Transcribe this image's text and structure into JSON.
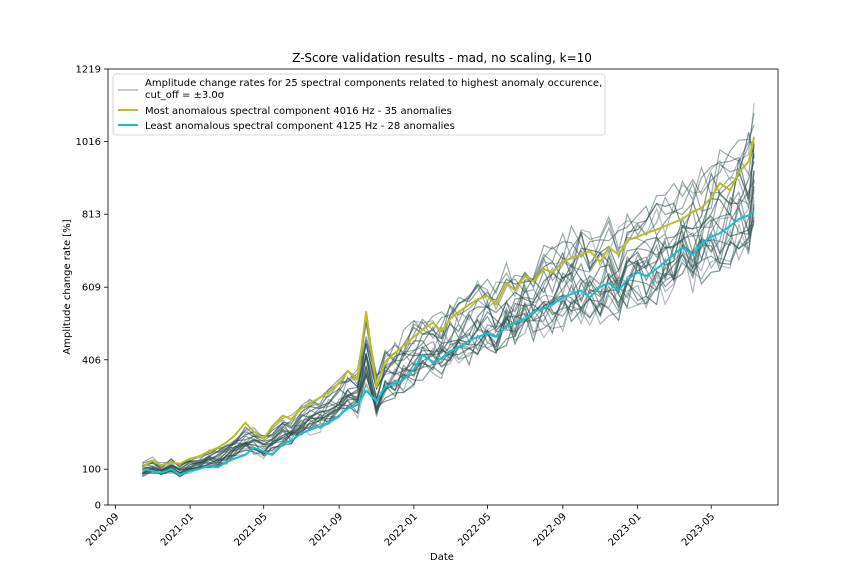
{
  "chart_data": {
    "type": "line",
    "title": "Z-Score validation results - mad, no scaling, k=10",
    "xlabel": "Date",
    "ylabel": "Amplitude change rate [%]",
    "ylim": [
      0,
      1219
    ],
    "y_ticks": [
      0,
      100,
      406,
      609,
      813,
      1016,
      1219
    ],
    "xlim": [
      "2020-08-20",
      "2023-08-18"
    ],
    "x_ticks": [
      "2020-09",
      "2021-01",
      "2021-05",
      "2021-09",
      "2022-01",
      "2022-05",
      "2022-09",
      "2023-01",
      "2023-05"
    ],
    "grid": false,
    "legend_position": "upper-left",
    "colors": {
      "background_series": "#2f4f4f",
      "most_anomalous": "#bcbd22",
      "least_anomalous": "#17becf",
      "legend_background_swatch": "#b0b8b8"
    },
    "legend": {
      "background_label_line1": "Amplitude change rates for 25 spectral components related to highest anomaly occurence,",
      "background_label_line2": "cut_off = ±3.0σ",
      "most_label": "Most anomalous spectral component 4016 Hz - 35 anomalies",
      "least_label": "Least anomalous spectral component 4125 Hz - 28 anomalies"
    },
    "series": [
      {
        "name": "Most anomalous spectral component 4016 Hz - 35 anomalies",
        "x": [
          "2020-10-15",
          "2020-11-01",
          "2020-11-15",
          "2020-12-01",
          "2020-12-15",
          "2021-01-01",
          "2021-01-15",
          "2021-02-01",
          "2021-02-15",
          "2021-03-01",
          "2021-03-15",
          "2021-04-01",
          "2021-04-15",
          "2021-05-01",
          "2021-05-15",
          "2021-06-01",
          "2021-06-15",
          "2021-07-01",
          "2021-07-15",
          "2021-08-01",
          "2021-08-15",
          "2021-09-01",
          "2021-09-15",
          "2021-10-01",
          "2021-10-15",
          "2021-11-01",
          "2021-11-15",
          "2021-12-01",
          "2021-12-15",
          "2022-01-01",
          "2022-01-15",
          "2022-02-01",
          "2022-02-15",
          "2022-03-01",
          "2022-03-15",
          "2022-04-01",
          "2022-04-15",
          "2022-05-01",
          "2022-05-15",
          "2022-06-01",
          "2022-06-15",
          "2022-07-01",
          "2022-07-15",
          "2022-08-01",
          "2022-08-15",
          "2022-09-01",
          "2022-09-15",
          "2022-10-01",
          "2022-10-15",
          "2022-11-01",
          "2022-11-15",
          "2022-12-01",
          "2022-12-15",
          "2023-01-01",
          "2023-01-15",
          "2023-02-01",
          "2023-02-15",
          "2023-03-01",
          "2023-03-15",
          "2023-04-01",
          "2023-04-15",
          "2023-05-01",
          "2023-05-15",
          "2023-06-01",
          "2023-06-15",
          "2023-07-01",
          "2023-07-10"
        ],
        "values": [
          105,
          125,
          110,
          120,
          115,
          130,
          135,
          150,
          160,
          175,
          195,
          230,
          205,
          185,
          220,
          250,
          240,
          270,
          285,
          300,
          315,
          340,
          375,
          350,
          540,
          330,
          400,
          425,
          445,
          470,
          490,
          510,
          485,
          520,
          540,
          560,
          575,
          585,
          560,
          620,
          600,
          640,
          625,
          660,
          650,
          680,
          690,
          700,
          710,
          680,
          720,
          700,
          740,
          750,
          760,
          770,
          780,
          790,
          800,
          820,
          830,
          860,
          900,
          880,
          930,
          960,
          1030
        ]
      },
      {
        "name": "Least anomalous spectral component 4125 Hz - 28 anomalies",
        "x": [
          "2020-10-15",
          "2020-11-01",
          "2020-11-15",
          "2020-12-01",
          "2020-12-15",
          "2021-01-01",
          "2021-01-15",
          "2021-02-01",
          "2021-02-15",
          "2021-03-01",
          "2021-03-15",
          "2021-04-01",
          "2021-04-15",
          "2021-05-01",
          "2021-05-15",
          "2021-06-01",
          "2021-06-15",
          "2021-07-01",
          "2021-07-15",
          "2021-08-01",
          "2021-08-15",
          "2021-09-01",
          "2021-09-15",
          "2021-10-01",
          "2021-10-15",
          "2021-11-01",
          "2021-11-15",
          "2021-12-01",
          "2021-12-15",
          "2022-01-01",
          "2022-01-15",
          "2022-02-01",
          "2022-02-15",
          "2022-03-01",
          "2022-03-15",
          "2022-04-01",
          "2022-04-15",
          "2022-05-01",
          "2022-05-15",
          "2022-06-01",
          "2022-06-15",
          "2022-07-01",
          "2022-07-15",
          "2022-08-01",
          "2022-08-15",
          "2022-09-01",
          "2022-09-15",
          "2022-10-01",
          "2022-10-15",
          "2022-11-01",
          "2022-11-15",
          "2022-12-01",
          "2022-12-15",
          "2023-01-01",
          "2023-01-15",
          "2023-02-01",
          "2023-02-15",
          "2023-03-01",
          "2023-03-15",
          "2023-04-01",
          "2023-04-15",
          "2023-05-01",
          "2023-05-15",
          "2023-06-01",
          "2023-06-15",
          "2023-07-01",
          "2023-07-10"
        ],
        "values": [
          100,
          95,
          90,
          100,
          85,
          95,
          100,
          110,
          105,
          120,
          130,
          140,
          160,
          150,
          140,
          170,
          180,
          200,
          210,
          220,
          230,
          250,
          270,
          280,
          320,
          290,
          330,
          340,
          350,
          380,
          420,
          400,
          410,
          430,
          440,
          460,
          470,
          480,
          470,
          500,
          510,
          520,
          540,
          550,
          560,
          580,
          590,
          600,
          580,
          610,
          620,
          600,
          630,
          650,
          640,
          660,
          680,
          700,
          720,
          700,
          730,
          750,
          760,
          780,
          800,
          810,
          820
        ]
      }
    ],
    "background_series_count": 25
  }
}
